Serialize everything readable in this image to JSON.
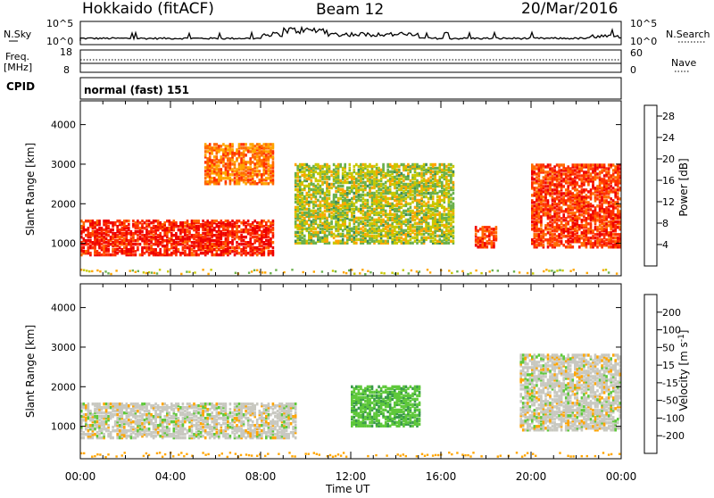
{
  "header": {
    "station": "Hokkaido (fitACF)",
    "beam": "Beam 12",
    "date": "20/Mar/2016"
  },
  "sky_panel": {
    "left_label": "N.Sky",
    "left_ticks": [
      "10^5",
      "10^0"
    ],
    "right_ticks": [
      "10^5",
      "10^0"
    ],
    "right_label": "N.Search"
  },
  "freq_panel": {
    "left_label_line1": "Freq.",
    "left_label_line2": "[MHz]",
    "left_ticks": [
      "18",
      "8"
    ],
    "right_ticks": [
      "60",
      "0"
    ],
    "right_label": "Nave"
  },
  "cpid_panel": {
    "label": "CPID",
    "value": "normal (fast) 151"
  },
  "colors": {
    "power": [
      "#0000ff",
      "#2a5a9a",
      "#3a8a5a",
      "#6ab04c",
      "#c8c800",
      "#ffa500",
      "#ff6a00",
      "#ff3000",
      "#ee0000"
    ],
    "velocity": [
      "#1a2a9a",
      "#2a6a7a",
      "#3a9a4a",
      "#5ec83a",
      "#c8c8c0",
      "#c8c8c0",
      "#ffa500",
      "#ff6a00",
      "#ff0000"
    ],
    "frame": "#000000"
  },
  "chart_data": [
    {
      "type": "heatmap",
      "ylabel": "Slant Range [km]",
      "xlabel": "Time UT",
      "x_ticks": [
        "00:00",
        "04:00",
        "08:00",
        "12:00",
        "16:00",
        "20:00",
        "00:00"
      ],
      "y_ticks": [
        1000,
        2000,
        3000,
        4000
      ],
      "ylim": [
        180,
        4600
      ],
      "colorbar": {
        "label": "Power [dB]",
        "ticks": [
          4,
          8,
          12,
          16,
          20,
          24,
          28
        ],
        "range": [
          0,
          30
        ]
      },
      "regions": [
        {
          "t": [
            0,
            8.5
          ],
          "range": [
            700,
            1600
          ],
          "power": 28
        },
        {
          "t": [
            5.5,
            8.5
          ],
          "range": [
            2500,
            3500
          ],
          "power": 22
        },
        {
          "t": [
            9.5,
            16.5
          ],
          "range": [
            1000,
            3000
          ],
          "power": 14
        },
        {
          "t": [
            17.5,
            18.5
          ],
          "range": [
            900,
            1400
          ],
          "power": 26
        },
        {
          "t": [
            20,
            24
          ],
          "range": [
            900,
            3000
          ],
          "power": 26
        }
      ]
    },
    {
      "type": "heatmap",
      "ylabel": "Slant Range [km]",
      "xlabel": "Time UT",
      "x_ticks": [
        "00:00",
        "04:00",
        "08:00",
        "12:00",
        "16:00",
        "20:00",
        "00:00"
      ],
      "y_ticks": [
        1000,
        2000,
        3000,
        4000
      ],
      "ylim": [
        180,
        4600
      ],
      "colorbar": {
        "label": "Velocity [m s^-1]",
        "ticks": [
          "200",
          "100",
          "50",
          "15",
          "-15",
          "-50",
          "-100",
          "-200"
        ]
      },
      "regions": [
        {
          "t": [
            0,
            9.5
          ],
          "range": [
            700,
            1600
          ],
          "velocity": 0
        },
        {
          "t": [
            12,
            15
          ],
          "range": [
            1000,
            2000
          ],
          "velocity": 40
        },
        {
          "t": [
            19.5,
            24
          ],
          "range": [
            900,
            2800
          ],
          "velocity": 0
        }
      ]
    }
  ]
}
